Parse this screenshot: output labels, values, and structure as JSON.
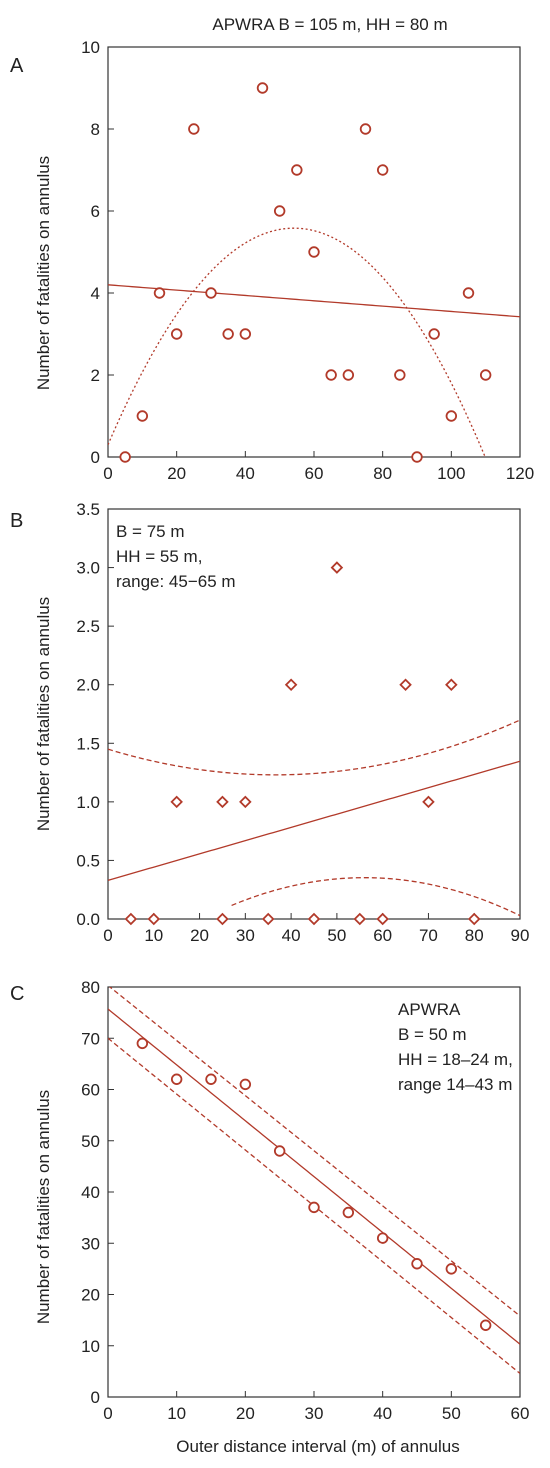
{
  "colors": {
    "series": "#b23a2a",
    "axis": "#333333",
    "marker_face": "#ffffff"
  },
  "chart_data": [
    {
      "panel_label": "A",
      "title": "APWRA  B = 105 m, HH = 80 m",
      "type": "scatter",
      "marker": "circle",
      "xlabel": "",
      "ylabel": "Number of fatalities on annulus",
      "xlim": [
        0,
        120
      ],
      "ylim": [
        0,
        10
      ],
      "xticks": [
        0,
        20,
        40,
        60,
        80,
        100,
        120
      ],
      "yticks": [
        0,
        2,
        4,
        6,
        8,
        10
      ],
      "ytick_decimals": 0,
      "x": [
        5,
        10,
        15,
        20,
        25,
        30,
        35,
        40,
        45,
        50,
        55,
        60,
        65,
        70,
        75,
        80,
        85,
        90,
        95,
        100,
        105,
        110
      ],
      "y": [
        0,
        1,
        4,
        3,
        8,
        4,
        3,
        3,
        9,
        6,
        7,
        5,
        2,
        2,
        8,
        7,
        2,
        0,
        3,
        1,
        4,
        2
      ],
      "fits": [
        {
          "kind": "linear",
          "style": "solid",
          "coef": [
            4.2,
            -0.0065
          ],
          "range": [
            0,
            120
          ]
        },
        {
          "kind": "quadratic",
          "style": "dotted",
          "coef": [
            0.3,
            0.195,
            -0.0018
          ],
          "range": [
            0,
            120
          ]
        }
      ],
      "annotation": []
    },
    {
      "panel_label": "B",
      "title": "",
      "type": "scatter",
      "marker": "diamond",
      "xlabel": "",
      "ylabel": "Number of fatalities on annulus",
      "xlim": [
        0,
        90
      ],
      "ylim": [
        0,
        3.5
      ],
      "xticks": [
        0,
        10,
        20,
        30,
        40,
        50,
        60,
        70,
        80,
        90
      ],
      "yticks": [
        0,
        0.5,
        1.0,
        1.5,
        2.0,
        2.5,
        3.0,
        3.5
      ],
      "ytick_decimals": 1,
      "x": [
        5,
        10,
        15,
        25,
        25,
        30,
        35,
        40,
        45,
        50,
        55,
        60,
        65,
        70,
        75,
        80
      ],
      "y": [
        0,
        0,
        1,
        1,
        0,
        1,
        0,
        2,
        0,
        3,
        0,
        0,
        2,
        1,
        2,
        0
      ],
      "fits": [
        {
          "kind": "linear",
          "style": "solid",
          "coef": [
            0.33,
            0.0113
          ],
          "range": [
            0,
            90
          ]
        },
        {
          "kind": "quadratic",
          "style": "dashed",
          "coef": [
            1.45,
            -0.012,
            0.000164
          ],
          "range": [
            0,
            90
          ]
        },
        {
          "kind": "quadratic",
          "style": "dashed",
          "coef": [
            -0.53,
            0.0315,
            -0.000281
          ],
          "range": [
            27,
            90
          ]
        }
      ],
      "annotation": [
        "B = 75 m",
        "HH = 55 m,",
        "range: 45−65 m"
      ]
    },
    {
      "panel_label": "C",
      "title": "",
      "type": "scatter",
      "marker": "circle",
      "xlabel": "Outer distance interval (m) of annulus",
      "ylabel": "Number of fatalities on annulus",
      "xlim": [
        0,
        60
      ],
      "ylim": [
        0,
        80
      ],
      "xticks": [
        0,
        10,
        20,
        30,
        40,
        50,
        60
      ],
      "yticks": [
        0,
        10,
        20,
        30,
        40,
        50,
        60,
        70,
        80
      ],
      "ytick_decimals": 0,
      "x": [
        5,
        10,
        15,
        20,
        25,
        30,
        35,
        40,
        45,
        50,
        55
      ],
      "y": [
        69,
        62,
        62,
        61,
        48,
        37,
        36,
        31,
        26,
        25,
        14
      ],
      "fits": [
        {
          "kind": "linear",
          "style": "solid",
          "coef": [
            75.7,
            -1.09
          ],
          "range": [
            0,
            60
          ]
        },
        {
          "kind": "linear",
          "style": "dashed",
          "coef": [
            80.3,
            -1.075
          ],
          "range": [
            0,
            60
          ]
        },
        {
          "kind": "linear",
          "style": "dashed",
          "coef": [
            70.0,
            -1.09
          ],
          "range": [
            0,
            60
          ]
        }
      ],
      "annotation": [
        "APWRA",
        "B = 50 m",
        "HH = 18–24 m,",
        "range 14–43 m"
      ]
    }
  ]
}
